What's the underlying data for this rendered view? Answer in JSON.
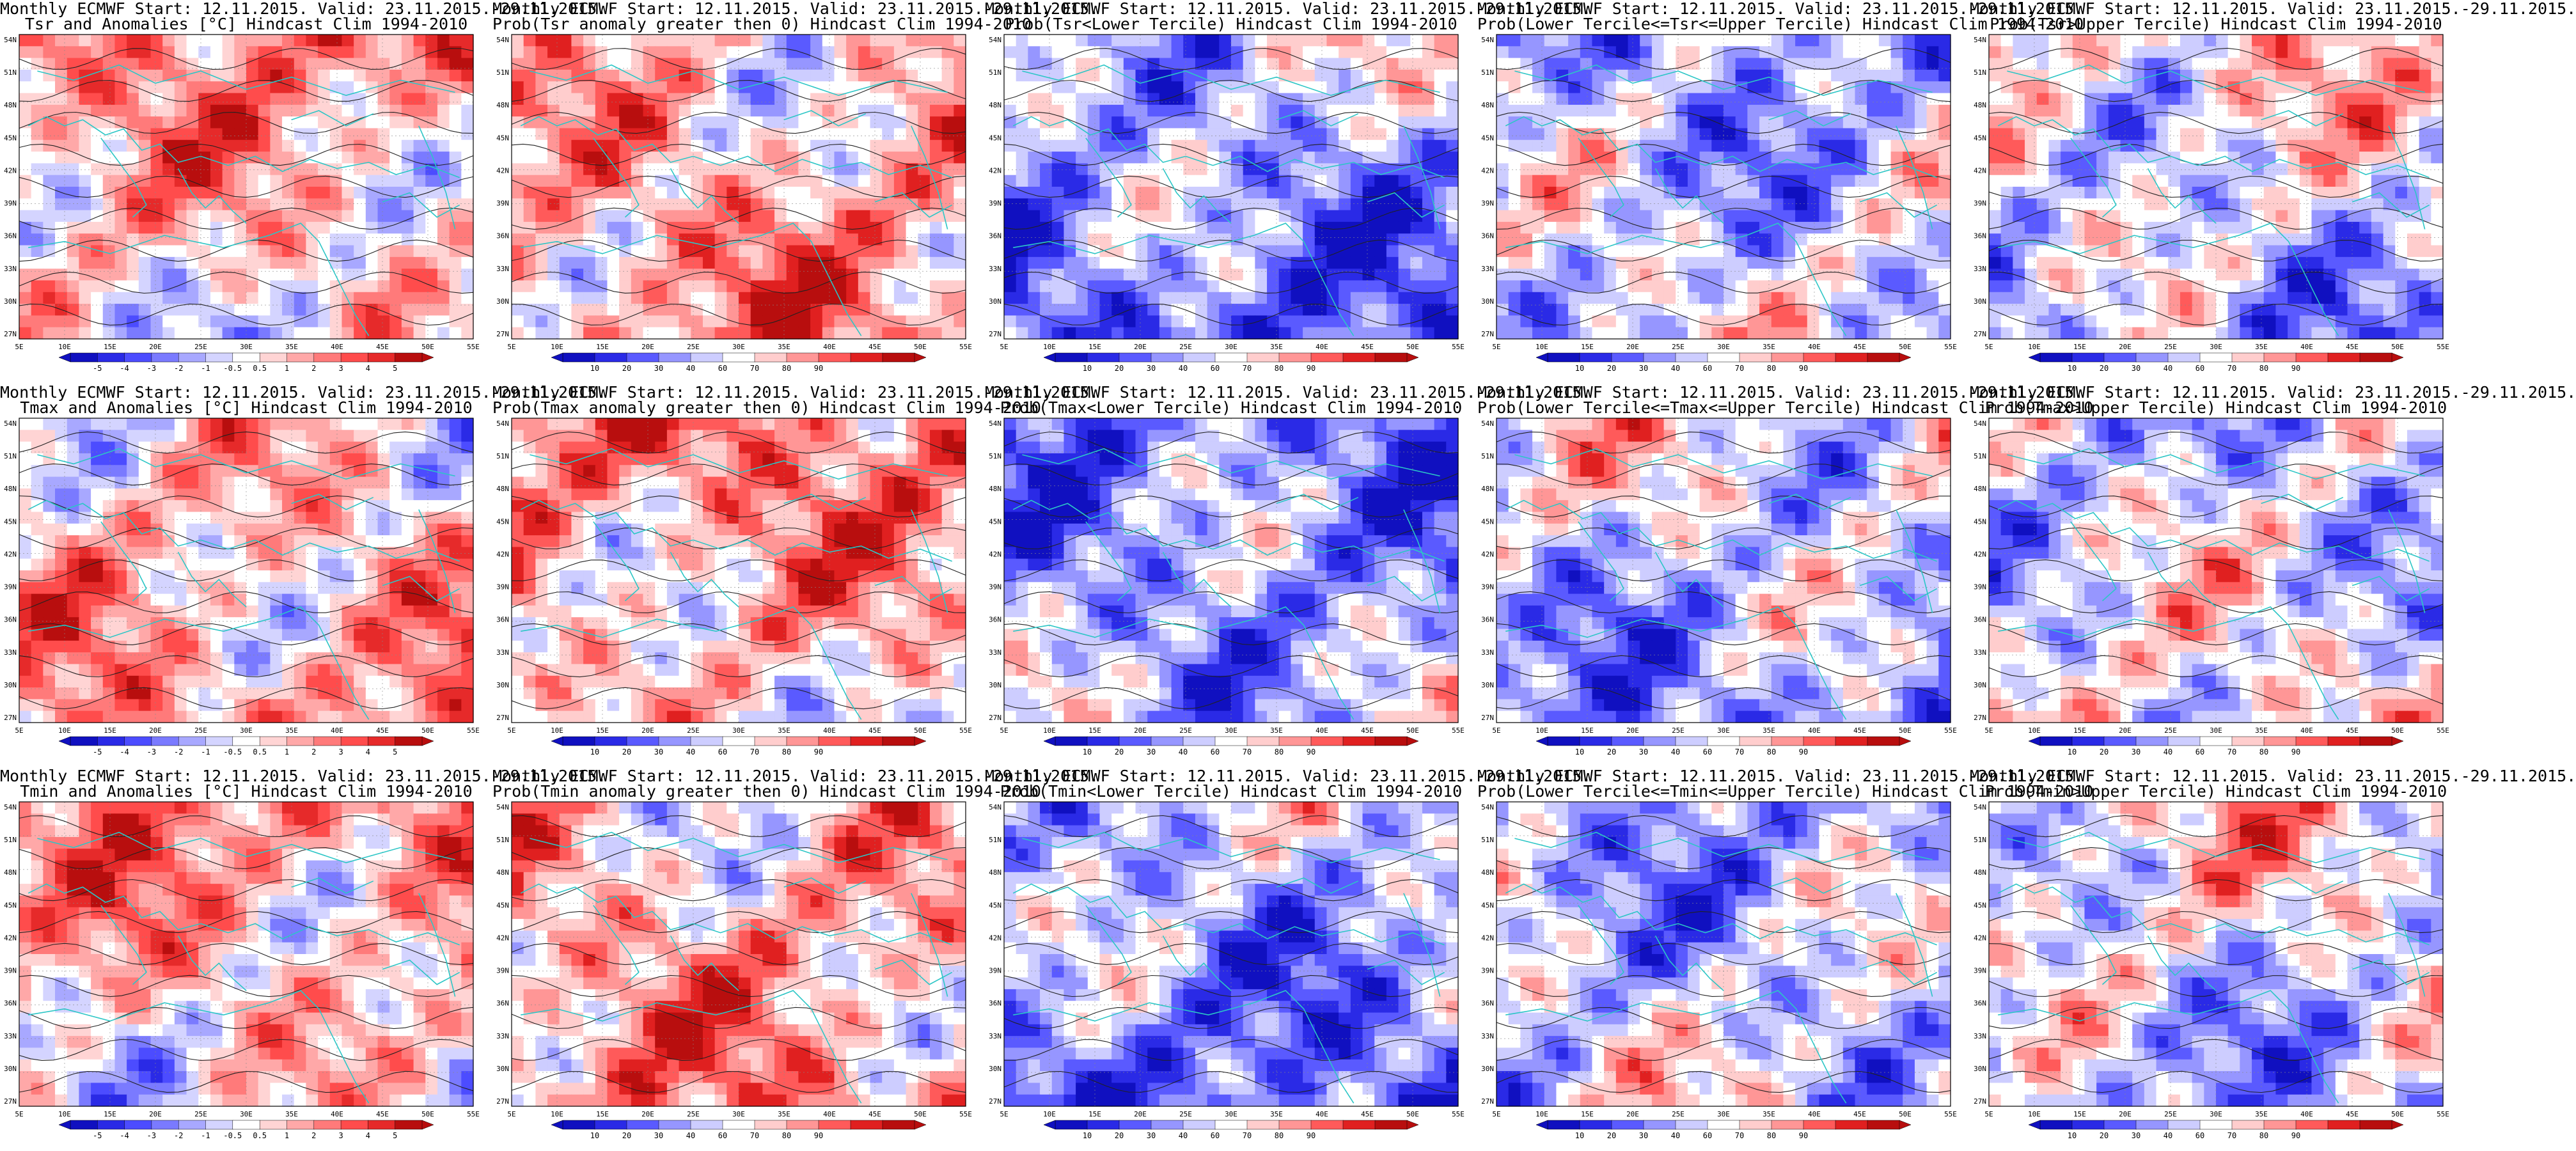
{
  "colors": {
    "coast": "#2cc6c6",
    "contour": "#222222",
    "frame": "#000000",
    "anom_palette": [
      "#1010c0",
      "#2a2ae6",
      "#4c4cff",
      "#7a7aff",
      "#a8a8ff",
      "#d4d4ff",
      "#ffffff",
      "#ffd4d4",
      "#ffa8a8",
      "#ff7a7a",
      "#ff4c4c",
      "#e62a2a",
      "#b80e0e"
    ],
    "prob_palette": [
      "#1010c0",
      "#2a2ae6",
      "#5a5aff",
      "#9696ff",
      "#cdcdff",
      "#ffffff",
      "#ffcdcd",
      "#ff9696",
      "#ff5a5a",
      "#e02020",
      "#b80e0e"
    ]
  },
  "axes": {
    "lat_labels": [
      "54N",
      "51N",
      "48N",
      "45N",
      "42N",
      "39N",
      "36N",
      "33N",
      "30N",
      "27N"
    ],
    "lon_labels": [
      "5E",
      "10E",
      "15E",
      "20E",
      "25E",
      "30E",
      "35E",
      "40E",
      "45E",
      "50E",
      "55E"
    ]
  },
  "colorbars": {
    "anomaly": [
      "-5",
      "-4",
      "-3",
      "-2",
      "-1",
      "-0.5",
      "0.5",
      "1",
      "2",
      "3",
      "4",
      "5"
    ],
    "probability": [
      "10",
      "20",
      "30",
      "40",
      "60",
      "70",
      "80",
      "90"
    ]
  },
  "panels": [
    {
      "title1": "Monthly ECMWF Start: 12.11.2015. Valid: 23.11.2015.-29.11.2015.",
      "title2": "Tsr and Anomalies [°C] Hindcast Clim 1994-2010",
      "kind": "anomaly",
      "bias": 0.3
    },
    {
      "title1": "Monthly ECMWF Start: 12.11.2015. Valid: 23.11.2015.-29.11.2015.",
      "title2": "Prob(Tsr anomaly greater then 0) Hindcast Clim 1994-2010",
      "kind": "probability",
      "bias": 0.35
    },
    {
      "title1": "Monthly ECMWF Start: 12.11.2015. Valid: 23.11.2015.-29.11.2015.",
      "title2": "Prob(Tsr<Lower Tercile) Hindcast Clim 1994-2010",
      "kind": "probability",
      "bias": -0.45
    },
    {
      "title1": "Monthly ECMWF Start: 12.11.2015. Valid: 23.11.2015.-29.11.2015.",
      "title2": "Prob(Lower Tercile<=Tsr<=Upper Tercile) Hindcast Clim 1994-2010",
      "kind": "probability",
      "bias": -0.25
    },
    {
      "title1": "Monthly ECMWF Start: 12.11.2015. Valid: 23.11.2015.-29.11.2015.",
      "title2": "Prob(Tsr>Upper Tercile) Hindcast Clim 1994-2010",
      "kind": "probability",
      "bias": -0.1
    },
    {
      "title1": "Monthly ECMWF Start: 12.11.2015. Valid: 23.11.2015.-29.11.2015.",
      "title2": "Tmax and Anomalies [°C] Hindcast Clim 1994-2010",
      "kind": "anomaly",
      "bias": 0.3
    },
    {
      "title1": "Monthly ECMWF Start: 12.11.2015. Valid: 23.11.2015.-29.11.2015.",
      "title2": "Prob(Tmax anomaly greater then 0) Hindcast Clim 1994-2010",
      "kind": "probability",
      "bias": 0.35
    },
    {
      "title1": "Monthly ECMWF Start: 12.11.2015. Valid: 23.11.2015.-29.11.2015.",
      "title2": "Prob(Tmax<Lower Tercile) Hindcast Clim 1994-2010",
      "kind": "probability",
      "bias": -0.45
    },
    {
      "title1": "Monthly ECMWF Start: 12.11.2015. Valid: 23.11.2015.-29.11.2015.",
      "title2": "Prob(Lower Tercile<=Tmax<=Upper Tercile) Hindcast Clim 1994-2010",
      "kind": "probability",
      "bias": -0.25
    },
    {
      "title1": "Monthly ECMWF Start: 12.11.2015. Valid: 23.11.2015.-29.11.2015.",
      "title2": "Prob(Tmax>Upper Tercile) Hindcast Clim 1994-2010",
      "kind": "probability",
      "bias": -0.1
    },
    {
      "title1": "Monthly ECMWF Start: 12.11.2015. Valid: 23.11.2015.-29.11.2015.",
      "title2": "Tmin and Anomalies [°C] Hindcast Clim 1994-2010",
      "kind": "anomaly",
      "bias": 0.3
    },
    {
      "title1": "Monthly ECMWF Start: 12.11.2015. Valid: 23.11.2015.-29.11.2015.",
      "title2": "Prob(Tmin anomaly greater then 0) Hindcast Clim 1994-2010",
      "kind": "probability",
      "bias": 0.35
    },
    {
      "title1": "Monthly ECMWF Start: 12.11.2015. Valid: 23.11.2015.-29.11.2015.",
      "title2": "Prob(Tmin<Lower Tercile) Hindcast Clim 1994-2010",
      "kind": "probability",
      "bias": -0.45
    },
    {
      "title1": "Monthly ECMWF Start: 12.11.2015. Valid: 23.11.2015.-29.11.2015.",
      "title2": "Prob(Lower Tercile<=Tmin<=Upper Tercile) Hindcast Clim 1994-2010",
      "kind": "probability",
      "bias": -0.25
    },
    {
      "title1": "Monthly ECMWF Start: 12.11.2015. Valid: 23.11.2015.-29.11.2015.",
      "title2": "Prob(Tmin>Upper Tercile) Hindcast Clim 1994-2010",
      "kind": "probability",
      "bias": -0.1
    }
  ]
}
